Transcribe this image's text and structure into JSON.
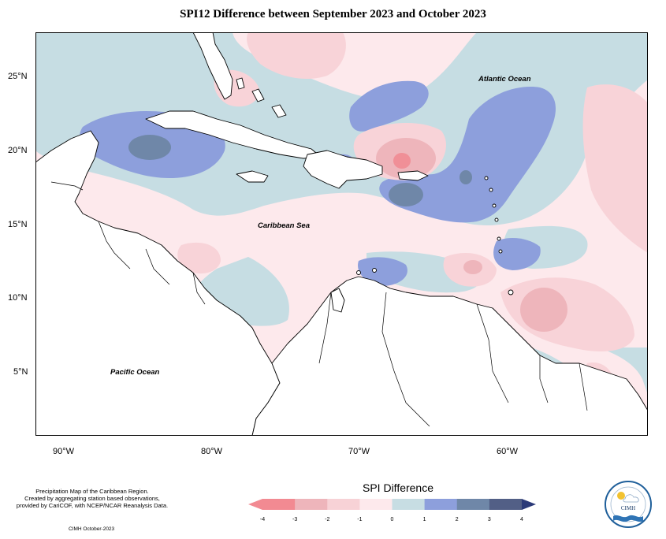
{
  "title": "SPI12 Difference between September 2023 and October 2023",
  "map": {
    "y_axis_labels": [
      "25°N",
      "20°N",
      "15°N",
      "10°N",
      "5°N"
    ],
    "x_axis_labels": [
      "90°W",
      "80°W",
      "70°W",
      "60°W"
    ],
    "region_labels": {
      "atlantic": "Atlantic Ocean",
      "caribbean": "Caribbean Sea",
      "pacific": "Pacific Ocean"
    },
    "colors": {
      "land": "#ffffff",
      "neutral_band": "#fde9ec",
      "positive_1": "#c6dde3",
      "positive_2": "#8d9fdc",
      "positive_3": "#6f87a8",
      "negative_2": "#f8d3d8",
      "negative_3": "#eeb5bb",
      "negative_4": "#f08f97"
    }
  },
  "notes": {
    "line1": "Precipitation Map of the Caribbean Region.",
    "line2": "Created by aggregating station based observations,",
    "line3": "provided by CariCOF, with NCEP/NCAR Reanalysis Data.",
    "credit": "CIMH October-2023"
  },
  "legend": {
    "title": "SPI Difference",
    "ticks": [
      "-4",
      "-3",
      "-2",
      "-1",
      "0",
      "1",
      "2",
      "3",
      "4"
    ],
    "colors": [
      "#f28a92",
      "#eeb5bb",
      "#f7d2d6",
      "#fde9ec",
      "#c7dde3",
      "#8d9fdc",
      "#6f87a8",
      "#525f86",
      "#2b3a78"
    ]
  },
  "logo": {
    "text": "CIMH"
  }
}
